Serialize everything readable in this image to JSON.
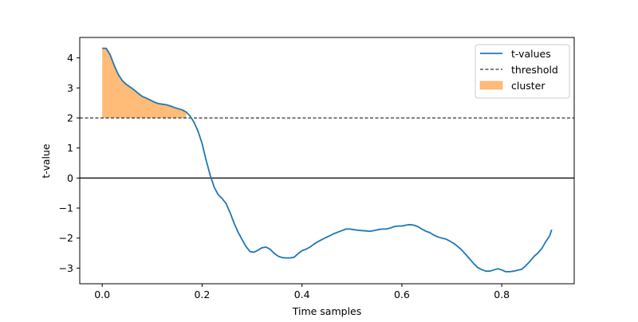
{
  "chart_data": {
    "type": "line",
    "title": "",
    "xlabel": "Time samples",
    "ylabel": "t-value",
    "xlim": [
      -0.045,
      0.945
    ],
    "ylim": [
      -3.52,
      4.68
    ],
    "xticks": [
      0.0,
      0.2,
      0.4,
      0.6,
      0.8
    ],
    "xtick_labels": [
      "0.0",
      "0.2",
      "0.4",
      "0.6",
      "0.8"
    ],
    "yticks": [
      -3,
      -2,
      -1,
      0,
      1,
      2,
      3,
      4
    ],
    "ytick_labels": [
      "−3",
      "−2",
      "−1",
      "0",
      "1",
      "2",
      "3",
      "4"
    ],
    "grid": false,
    "legend_position": "upper right",
    "threshold": 2.0,
    "zero_line": 0.0,
    "colors": {
      "t_values": "#1f77b4",
      "threshold": "#000000",
      "cluster": "#ffbb78",
      "cluster_alpha": 1.0
    },
    "series": [
      {
        "name": "t-values",
        "style": "solid",
        "x": [
          0.0,
          0.008,
          0.016,
          0.024,
          0.032,
          0.04,
          0.048,
          0.056,
          0.064,
          0.072,
          0.08,
          0.088,
          0.096,
          0.104,
          0.112,
          0.12,
          0.128,
          0.136,
          0.144,
          0.152,
          0.16,
          0.168,
          0.176,
          0.184,
          0.192,
          0.2,
          0.208,
          0.216,
          0.224,
          0.232,
          0.24,
          0.248,
          0.256,
          0.264,
          0.272,
          0.28,
          0.288,
          0.296,
          0.304,
          0.312,
          0.32,
          0.328,
          0.336,
          0.344,
          0.352,
          0.36,
          0.368,
          0.376,
          0.384,
          0.392,
          0.4,
          0.408,
          0.416,
          0.424,
          0.432,
          0.44,
          0.448,
          0.456,
          0.464,
          0.472,
          0.48,
          0.488,
          0.496,
          0.504,
          0.512,
          0.52,
          0.528,
          0.536,
          0.544,
          0.552,
          0.56,
          0.568,
          0.576,
          0.584,
          0.592,
          0.6,
          0.608,
          0.616,
          0.624,
          0.632,
          0.64,
          0.648,
          0.656,
          0.664,
          0.672,
          0.68,
          0.688,
          0.696,
          0.704,
          0.712,
          0.72,
          0.728,
          0.736,
          0.744,
          0.752,
          0.76,
          0.768,
          0.776,
          0.784,
          0.792,
          0.8,
          0.808,
          0.816,
          0.824,
          0.832,
          0.84,
          0.848,
          0.856,
          0.864,
          0.872,
          0.88,
          0.888,
          0.896,
          0.9
        ],
        "values": [
          4.32,
          4.32,
          4.1,
          3.75,
          3.45,
          3.25,
          3.12,
          3.03,
          2.93,
          2.82,
          2.72,
          2.66,
          2.6,
          2.53,
          2.48,
          2.46,
          2.44,
          2.4,
          2.35,
          2.31,
          2.27,
          2.2,
          2.06,
          1.85,
          1.55,
          1.15,
          0.6,
          0.1,
          -0.3,
          -0.55,
          -0.68,
          -0.85,
          -1.15,
          -1.5,
          -1.8,
          -2.05,
          -2.28,
          -2.45,
          -2.47,
          -2.4,
          -2.32,
          -2.3,
          -2.37,
          -2.5,
          -2.6,
          -2.65,
          -2.66,
          -2.66,
          -2.64,
          -2.52,
          -2.42,
          -2.37,
          -2.3,
          -2.2,
          -2.12,
          -2.05,
          -1.98,
          -1.92,
          -1.85,
          -1.8,
          -1.75,
          -1.7,
          -1.7,
          -1.72,
          -1.74,
          -1.75,
          -1.76,
          -1.77,
          -1.75,
          -1.72,
          -1.7,
          -1.7,
          -1.67,
          -1.62,
          -1.6,
          -1.6,
          -1.57,
          -1.55,
          -1.57,
          -1.62,
          -1.7,
          -1.77,
          -1.82,
          -1.9,
          -1.96,
          -2.0,
          -2.03,
          -2.1,
          -2.18,
          -2.28,
          -2.4,
          -2.55,
          -2.7,
          -2.85,
          -2.98,
          -3.05,
          -3.1,
          -3.1,
          -3.06,
          -3.02,
          -3.06,
          -3.12,
          -3.12,
          -3.1,
          -3.07,
          -3.04,
          -2.92,
          -2.78,
          -2.62,
          -2.5,
          -2.35,
          -2.12,
          -1.92,
          -1.72
        ]
      },
      {
        "name": "threshold",
        "style": "dashed",
        "constant_y": 2.0
      },
      {
        "name": "cluster",
        "style": "fill",
        "x_range": [
          0.0,
          0.168
        ],
        "fill_between": [
          "threshold",
          "t-values"
        ]
      }
    ],
    "legend": [
      {
        "label": "t-values",
        "kind": "line"
      },
      {
        "label": "threshold",
        "kind": "dashed"
      },
      {
        "label": "cluster",
        "kind": "patch"
      }
    ]
  }
}
